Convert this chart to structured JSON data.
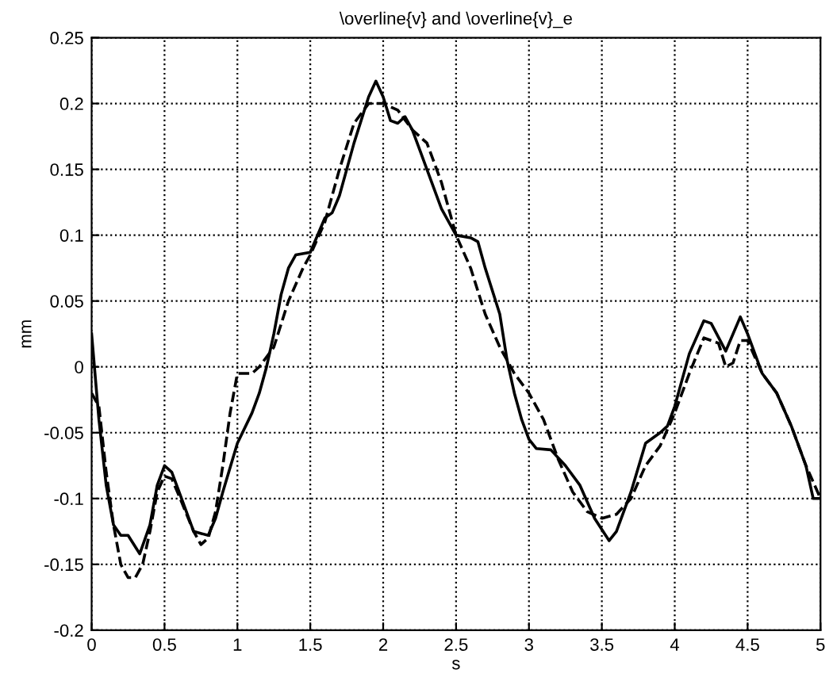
{
  "chart_data": {
    "type": "line",
    "title": "\\overline{v} and \\overline{v}_e",
    "xlabel": "s",
    "ylabel": "mm",
    "xlim": [
      0,
      5
    ],
    "ylim": [
      -0.2,
      0.25
    ],
    "xticks": [
      0,
      0.5,
      1,
      1.5,
      2,
      2.5,
      3,
      3.5,
      4,
      4.5,
      5
    ],
    "yticks": [
      -0.2,
      -0.15,
      -0.1,
      -0.05,
      0,
      0.05,
      0.1,
      0.15,
      0.2,
      0.25
    ],
    "grid": true,
    "marker": "none",
    "series": [
      {
        "color": "#000000",
        "line_style": "solid",
        "x": [
          0,
          0.05,
          0.1,
          0.15,
          0.2,
          0.25,
          0.33,
          0.4,
          0.45,
          0.5,
          0.55,
          0.6,
          0.7,
          0.8,
          0.85,
          0.9,
          1.0,
          1.1,
          1.15,
          1.2,
          1.25,
          1.3,
          1.35,
          1.4,
          1.5,
          1.6,
          1.65,
          1.7,
          1.8,
          1.9,
          1.95,
          2.0,
          2.05,
          2.1,
          2.15,
          2.2,
          2.25,
          2.3,
          2.4,
          2.5,
          2.6,
          2.65,
          2.7,
          2.8,
          2.85,
          2.9,
          2.95,
          3.0,
          3.05,
          3.15,
          3.25,
          3.35,
          3.45,
          3.55,
          3.6,
          3.7,
          3.8,
          3.9,
          3.95,
          4.0,
          4.1,
          4.2,
          4.25,
          4.35,
          4.45,
          4.5,
          4.6,
          4.7,
          4.8,
          4.9,
          4.95,
          5.0
        ],
        "values": [
          0.025,
          -0.04,
          -0.09,
          -0.12,
          -0.128,
          -0.128,
          -0.142,
          -0.12,
          -0.09,
          -0.075,
          -0.08,
          -0.095,
          -0.125,
          -0.128,
          -0.115,
          -0.095,
          -0.058,
          -0.035,
          -0.02,
          0.0,
          0.025,
          0.055,
          0.075,
          0.085,
          0.087,
          0.113,
          0.117,
          0.13,
          0.17,
          0.205,
          0.217,
          0.205,
          0.187,
          0.185,
          0.19,
          0.18,
          0.165,
          0.15,
          0.12,
          0.1,
          0.098,
          0.095,
          0.075,
          0.04,
          0.005,
          -0.02,
          -0.04,
          -0.055,
          -0.062,
          -0.063,
          -0.075,
          -0.09,
          -0.115,
          -0.132,
          -0.125,
          -0.095,
          -0.058,
          -0.05,
          -0.045,
          -0.03,
          0.01,
          0.035,
          0.033,
          0.012,
          0.038,
          0.025,
          -0.005,
          -0.02,
          -0.045,
          -0.075,
          -0.1,
          -0.1
        ]
      },
      {
        "color": "#000000",
        "line_style": "dashed",
        "x": [
          0,
          0.05,
          0.1,
          0.15,
          0.2,
          0.25,
          0.3,
          0.35,
          0.4,
          0.45,
          0.5,
          0.55,
          0.6,
          0.7,
          0.75,
          0.8,
          0.85,
          0.9,
          0.95,
          1.0,
          1.05,
          1.1,
          1.15,
          1.25,
          1.35,
          1.45,
          1.5,
          1.6,
          1.7,
          1.8,
          1.9,
          2.0,
          2.1,
          2.2,
          2.3,
          2.4,
          2.5,
          2.6,
          2.7,
          2.8,
          2.9,
          3.0,
          3.1,
          3.2,
          3.3,
          3.4,
          3.5,
          3.6,
          3.7,
          3.8,
          3.9,
          4.0,
          4.1,
          4.2,
          4.3,
          4.35,
          4.4,
          4.45,
          4.5,
          4.6,
          4.7,
          4.8,
          4.9,
          5.0
        ],
        "values": [
          -0.02,
          -0.03,
          -0.08,
          -0.12,
          -0.15,
          -0.16,
          -0.16,
          -0.15,
          -0.125,
          -0.095,
          -0.083,
          -0.085,
          -0.098,
          -0.125,
          -0.135,
          -0.13,
          -0.11,
          -0.075,
          -0.035,
          -0.005,
          -0.005,
          -0.005,
          0.0,
          0.015,
          0.05,
          0.075,
          0.085,
          0.11,
          0.15,
          0.185,
          0.2,
          0.2,
          0.195,
          0.18,
          0.17,
          0.14,
          0.1,
          0.075,
          0.04,
          0.015,
          -0.005,
          -0.02,
          -0.04,
          -0.07,
          -0.095,
          -0.11,
          -0.115,
          -0.112,
          -0.1,
          -0.075,
          -0.06,
          -0.035,
          -0.005,
          0.022,
          0.018,
          0.0,
          0.003,
          0.02,
          0.02,
          -0.005,
          -0.02,
          -0.045,
          -0.075,
          -0.1
        ]
      }
    ]
  }
}
